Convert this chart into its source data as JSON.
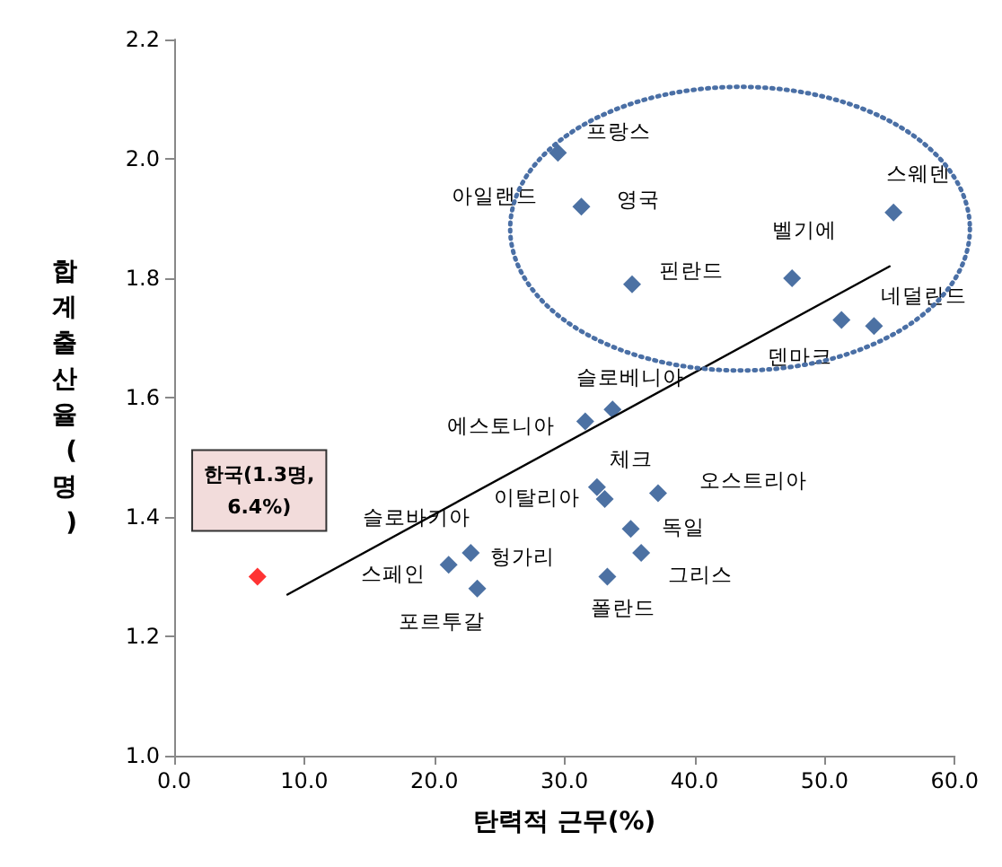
{
  "chart_data": {
    "type": "scatter",
    "xlabel": "탄력적 근무(%)",
    "ylabel": "합계출산율(명)",
    "xlim": [
      0,
      60
    ],
    "ylim": [
      1,
      2.2
    ],
    "xticks": [
      {
        "value": 0,
        "label": "0.0"
      },
      {
        "value": 10,
        "label": "10.0"
      },
      {
        "value": 20,
        "label": "20.0"
      },
      {
        "value": 30,
        "label": "30.0"
      },
      {
        "value": 40,
        "label": "40.0"
      },
      {
        "value": 50,
        "label": "50.0"
      },
      {
        "value": 60,
        "label": "60.0"
      }
    ],
    "yticks": [
      {
        "value": 1,
        "label": "1.0"
      },
      {
        "value": 1.2,
        "label": "1.2"
      },
      {
        "value": 1.4,
        "label": "1.4"
      },
      {
        "value": 1.6,
        "label": "1.6"
      },
      {
        "value": 1.8,
        "label": "1.8"
      },
      {
        "value": 2,
        "label": "2.0"
      },
      {
        "value": 2.2,
        "label": "2.2"
      }
    ],
    "grid": false,
    "marker": "diamond",
    "series": [
      {
        "color": "#1f4e8c",
        "x": [
          29.5,
          31.3,
          35.2,
          47.5,
          55.3,
          51.3,
          53.8,
          33.7,
          31.6,
          32.5,
          33.1,
          37.2,
          35.1,
          35.9,
          33.3,
          22.8,
          21.1,
          23.3
        ],
        "values": [
          2.01,
          1.92,
          1.79,
          1.8,
          1.91,
          1.73,
          1.72,
          1.58,
          1.56,
          1.45,
          1.43,
          1.44,
          1.38,
          1.34,
          1.3,
          1.34,
          1.32,
          1.28
        ]
      },
      {
        "color": "#ff0000",
        "x": [
          6.4
        ],
        "values": [
          1.3
        ]
      },
      {
        "type": "line",
        "color": "#000000",
        "marker": "none",
        "x": [
          8.7,
          55
        ],
        "values": [
          1.27,
          1.82
        ]
      }
    ],
    "annotations": [
      {
        "text": "프랑스",
        "x": 29.5,
        "y": 2.01
      },
      {
        "text": "아일랜드",
        "x": 31.3,
        "y": 1.92
      },
      {
        "text": "영국",
        "x": 31.3,
        "y": 1.92
      },
      {
        "text": "핀란드",
        "x": 35.2,
        "y": 1.79
      },
      {
        "text": "벨기에",
        "x": 47.5,
        "y": 1.8
      },
      {
        "text": "스웨덴",
        "x": 55.3,
        "y": 1.91
      },
      {
        "text": "네덜란드",
        "x": 53.8,
        "y": 1.72
      },
      {
        "text": "덴마크",
        "x": 51.3,
        "y": 1.73
      },
      {
        "text": "슬로베니아",
        "x": 33.7,
        "y": 1.58
      },
      {
        "text": "에스토니아",
        "x": 31.6,
        "y": 1.56
      },
      {
        "text": "체크",
        "x": 32.5,
        "y": 1.45
      },
      {
        "text": "이탈리아",
        "x": 33.1,
        "y": 1.43
      },
      {
        "text": "오스트리아",
        "x": 37.2,
        "y": 1.44
      },
      {
        "text": "독일",
        "x": 35.1,
        "y": 1.38
      },
      {
        "text": "그리스",
        "x": 35.9,
        "y": 1.34
      },
      {
        "text": "폴란드",
        "x": 33.3,
        "y": 1.3
      },
      {
        "text": "슬로바키아",
        "x": 22.8,
        "y": 1.34
      },
      {
        "text": "헝가리",
        "x": 22.8,
        "y": 1.34
      },
      {
        "text": "스페인",
        "x": 21.1,
        "y": 1.32
      },
      {
        "text": "포르투갈",
        "x": 23.3,
        "y": 1.28
      },
      {
        "text": "한국(1.3명,\n6.4%)",
        "x": 6.4,
        "y": 1.3
      }
    ]
  }
}
